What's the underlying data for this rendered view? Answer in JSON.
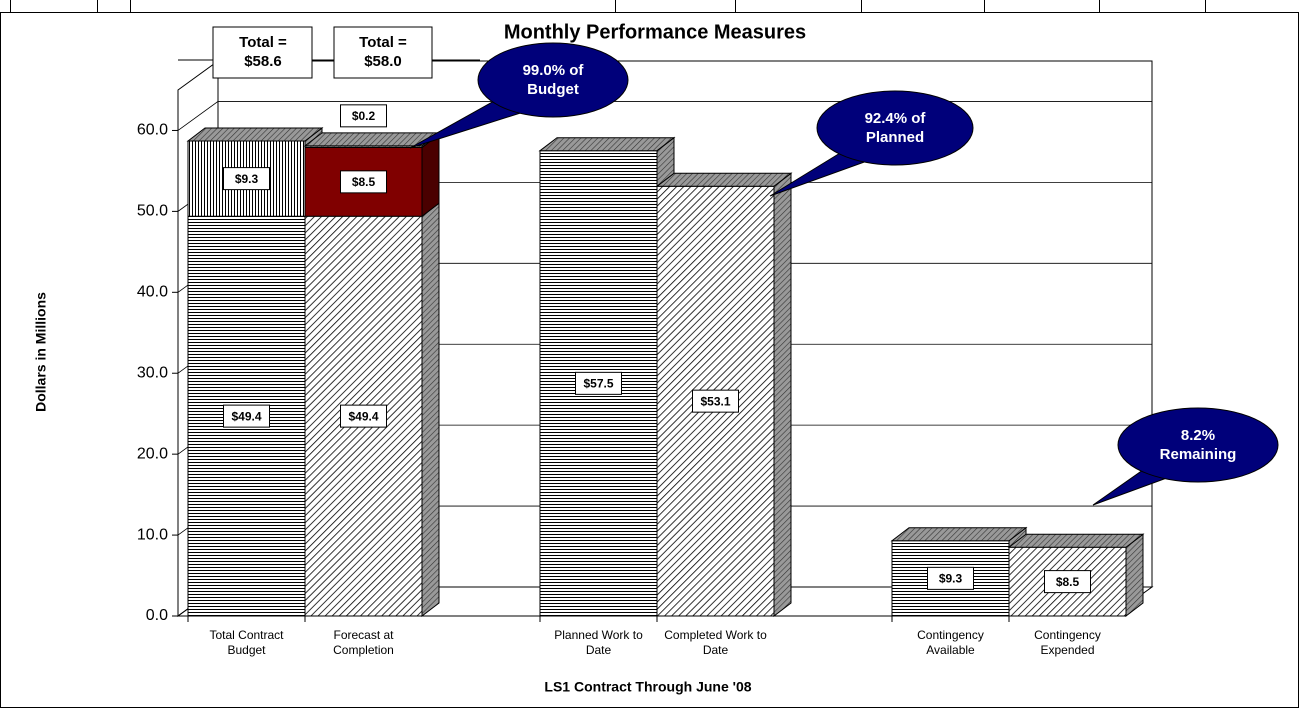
{
  "chart_data": {
    "type": "bar",
    "title": "Monthly Performance Measures",
    "x_label": "LS1 Contract Through June '08",
    "y_label": "Dollars in Millions",
    "categories": [
      "Total Contract Budget",
      "Forecast at Completion",
      "Planned Work to Date",
      "Completed Work to Date",
      "Contingency Available",
      "Contingency Expended"
    ],
    "series": [
      {
        "color": "#000000",
        "patterns": [
          "horizontal",
          "diagonal",
          "horizontal",
          "diagonal",
          "horizontal",
          "diagonal"
        ],
        "values": [
          49.4,
          49.4,
          57.5,
          53.1,
          9.3,
          8.5
        ],
        "value_labels": [
          "$49.4",
          "$49.4",
          "$57.5",
          "$53.1",
          "$9.3",
          "$8.5"
        ]
      },
      {
        "color": "#800000",
        "patterns": [
          "vertical",
          "solid",
          null,
          null,
          null,
          null
        ],
        "values": [
          9.3,
          8.5,
          null,
          null,
          null,
          null
        ],
        "value_labels": [
          "$9.3",
          "$8.5",
          null,
          null,
          null,
          null
        ]
      },
      {
        "color": "#808080",
        "patterns": [
          null,
          "crosshatch",
          null,
          null,
          null,
          null
        ],
        "values": [
          null,
          0.2,
          null,
          null,
          null,
          null
        ],
        "value_labels": [
          null,
          "$0.2",
          null,
          null,
          null,
          null
        ]
      }
    ],
    "ylim": [
      0,
      65
    ],
    "yticks": [
      {
        "value": 0,
        "label": "0.0"
      },
      {
        "value": 10,
        "label": "10.0"
      },
      {
        "value": 20,
        "label": "20.0"
      },
      {
        "value": 30,
        "label": "30.0"
      },
      {
        "value": 40,
        "label": "40.0"
      },
      {
        "value": 50,
        "label": "50.0"
      },
      {
        "value": 60,
        "label": "60.0"
      }
    ],
    "grid": true,
    "annotations": [
      "Total = $58.6",
      "Total = $58.0",
      "99.0% of Budget",
      "92.4% of Planned",
      "8.2% Remaining"
    ]
  }
}
